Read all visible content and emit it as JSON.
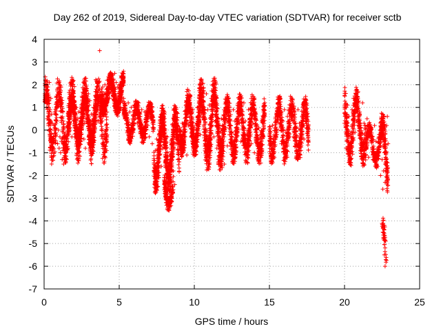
{
  "chart_data": {
    "type": "scatter",
    "title": "Day 262 of 2019, Sidereal Day-to-day VTEC variation (SDTVAR) for receiver sctb",
    "xlabel": "GPS time / hours",
    "ylabel": "SDTVAR / TECUs",
    "xlim": [
      0,
      25
    ],
    "ylim": [
      -7,
      4
    ],
    "x_ticks": [
      "0",
      "5",
      "10",
      "15",
      "20",
      "25"
    ],
    "y_ticks": [
      "4",
      "3",
      "2",
      "1",
      "0",
      "-1",
      "-2",
      "-3",
      "-4",
      "-5",
      "-6",
      "-7"
    ],
    "grid": true,
    "marker": "+",
    "color": "#ff0000",
    "series": [
      {
        "name": "sctb",
        "x": [
          0.05,
          0.1,
          0.15,
          0.2,
          0.25,
          0.3,
          0.35,
          0.4,
          0.45,
          0.5,
          0.55,
          0.6,
          0.65,
          0.7,
          0.75,
          0.8,
          0.85,
          0.9,
          0.95,
          1.0,
          1.05,
          1.1,
          1.15,
          1.2,
          1.25,
          1.3,
          1.35,
          1.4,
          1.45,
          1.5,
          1.55,
          1.6,
          1.65,
          1.7,
          1.75,
          1.8,
          1.85,
          1.9,
          1.95,
          2.0,
          2.05,
          2.1,
          2.15,
          2.2,
          2.25,
          2.3,
          2.35,
          2.4,
          2.45,
          2.5,
          2.55,
          2.6,
          2.65,
          2.7,
          2.75,
          2.8,
          2.85,
          2.9,
          2.95,
          3.0,
          3.05,
          3.1,
          3.15,
          3.2,
          3.25,
          3.3,
          3.35,
          3.4,
          3.45,
          3.5,
          3.55,
          3.6,
          3.65,
          3.7,
          3.75,
          3.8,
          3.85,
          3.9,
          3.95,
          4.0,
          4.05,
          4.1,
          4.15,
          4.2,
          4.25,
          4.3,
          4.35,
          4.4,
          4.45,
          4.5,
          4.55,
          4.6,
          4.65,
          4.7,
          4.75,
          4.8,
          4.85,
          4.9,
          4.95,
          5.0,
          5.05,
          5.1,
          5.15,
          5.2,
          5.25,
          5.3,
          5.35,
          5.4,
          5.5,
          5.6,
          5.7,
          5.8,
          5.9,
          6.0,
          6.1,
          6.2,
          6.3,
          6.4,
          6.5,
          6.6,
          6.7,
          6.8,
          6.9,
          7.0,
          7.1,
          7.2,
          7.3,
          7.4,
          7.5,
          7.6,
          7.7,
          7.8,
          7.9,
          8.0,
          8.1,
          8.2,
          8.3,
          8.4,
          8.5,
          8.6,
          8.7,
          8.8,
          8.9,
          9.0,
          9.1,
          9.2,
          9.3,
          9.4,
          9.5,
          9.6,
          9.7,
          9.8,
          9.9,
          10.0,
          10.1,
          10.2,
          10.3,
          10.4,
          10.5,
          10.6,
          10.7,
          10.8,
          10.9,
          11.0,
          11.1,
          11.2,
          11.3,
          11.4,
          11.5,
          11.6,
          11.7,
          11.8,
          11.9,
          12.0,
          12.1,
          12.2,
          12.3,
          12.4,
          12.5,
          12.6,
          12.7,
          12.8,
          12.9,
          13.0,
          13.1,
          13.2,
          13.3,
          13.4,
          13.5,
          13.6,
          13.7,
          13.8,
          13.9,
          14.0,
          14.1,
          14.2,
          14.3,
          14.4,
          14.5,
          14.6,
          14.7,
          15.0,
          15.1,
          15.2,
          15.3,
          15.4,
          15.5,
          15.6,
          15.7,
          15.8,
          15.9,
          16.0,
          16.1,
          16.2,
          16.3,
          16.4,
          16.5,
          16.6,
          16.7,
          16.8,
          16.9,
          17.0,
          17.1,
          17.2,
          17.3,
          17.4,
          17.5,
          17.6,
          20.0,
          20.1,
          20.2,
          20.3,
          20.4,
          20.5,
          20.6,
          20.7,
          20.8,
          20.9,
          21.0,
          21.1,
          21.2,
          21.3,
          21.4,
          21.5,
          21.6,
          21.7,
          21.8,
          21.9,
          22.0,
          22.1,
          22.2,
          22.3,
          22.4,
          22.5,
          22.55,
          22.6,
          22.65,
          22.7,
          22.75,
          22.8,
          22.85,
          22.9,
          3.7,
          8.2,
          8.3,
          9.5,
          22.6,
          22.65,
          22.7
        ],
        "y": [
          1.6,
          2.2,
          1.0,
          0.5,
          1.9,
          1.3,
          2.1,
          0.9,
          1.4,
          0.7,
          0.3,
          -0.5,
          0.2,
          0.8,
          0.1,
          -0.2,
          0.4,
          -0.6,
          0.0,
          -0.8,
          -0.3,
          -1.0,
          -0.5,
          -1.3,
          -0.9,
          -1.5,
          -1.2,
          -0.7,
          -1.4,
          -0.4,
          -0.1,
          0.3,
          -0.2,
          0.5,
          0.1,
          0.6,
          -0.3,
          0.9,
          0.4,
          1.2,
          0.7,
          0.2,
          1.0,
          -0.1,
          0.5,
          0.8,
          0.1,
          -0.6,
          -0.2,
          0.4,
          1.1,
          0.6,
          -0.4,
          0.3,
          -0.8,
          0.9,
          1.4,
          0.5,
          1.6,
          1.1,
          1.3,
          0.2,
          0.7,
          -0.3,
          0.4,
          1.0,
          0.6,
          1.2,
          0.8,
          1.5,
          1.0,
          0.4,
          1.3,
          1.8,
          1.1,
          0.5,
          1.7,
          1.9,
          1.3,
          1.6,
          2.0,
          1.2,
          1.8,
          2.2,
          1.5,
          2.0,
          1.4,
          2.3,
          1.7,
          2.4,
          1.9,
          2.2,
          1.6,
          2.5,
          1.8,
          2.1,
          1.4,
          1.9,
          1.2,
          2.0,
          1.5,
          1.0,
          1.7,
          1.3,
          0.9,
          1.4,
          0.6,
          1.1,
          0.7,
          1.2,
          0.8,
          1.0,
          0.5,
          1.1,
          0.9,
          0.3,
          1.2,
          0.6,
          0.9,
          0.1,
          0.8,
          0.4,
          0.2,
          -0.3,
          0.5,
          -0.6,
          0.1,
          -0.9,
          -0.4,
          -1.2,
          0.2,
          -1.6,
          -0.8,
          -2.2,
          -1.4,
          -0.3,
          -2.0,
          -2.6,
          -1.0,
          -1.8,
          -2.4,
          -0.6,
          -1.3,
          -0.2,
          -0.9,
          0.3,
          -0.5,
          0.7,
          -1.1,
          0.2,
          0.6,
          -0.3,
          0.9,
          0.1,
          -0.4,
          1.0,
          0.4,
          -0.2,
          0.8,
          1.3,
          0.5,
          1.6,
          0.9,
          1.1,
          0.3,
          0.7,
          -0.3,
          0.4,
          -0.8,
          0.2,
          -1.2,
          0.5,
          -0.4,
          -1.5,
          0.1,
          -0.7,
          0.6,
          0.2,
          -0.3,
          0.9,
          0.4,
          -0.1,
          0.8,
          0.3,
          -0.5,
          0.7,
          1.2,
          0.4,
          -0.2,
          0.9,
          0.5,
          -0.6,
          0.3,
          -1.0,
          0.2,
          -0.4,
          0.1,
          -0.8,
          0.4,
          -0.3,
          0.6,
          0.0,
          -1.2,
          0.2,
          -0.5,
          0.5,
          -0.2,
          0.8,
          0.3,
          -0.6,
          0.4,
          0.9,
          -0.1,
          0.6,
          0.2,
          1.1,
          0.5,
          -0.3,
          0.7,
          0.1,
          0.9,
          0.3,
          -0.9,
          0.2,
          -0.4,
          0.5,
          0.8,
          -0.5,
          0.3,
          -0.8,
          1.1,
          0.6,
          -0.2,
          0.9,
          1.4,
          -0.1,
          0.4,
          1.7,
          0.8,
          -0.4,
          1.2,
          0.3,
          -0.8,
          0.5,
          -1.2,
          -0.3,
          0.1,
          -1.0,
          0.2,
          -0.5,
          -1.6,
          -0.2,
          -2.0,
          -1.3,
          -2.6,
          -1.8,
          -1.0,
          -2.3,
          -1.5,
          0.2,
          0.6,
          -0.6,
          3.5,
          -3.5,
          -3.2,
          1.7,
          -4.2,
          -5.5,
          -6.0
        ],
        "clusters": [
          {
            "x": [
              0.05,
              4.2
            ],
            "y": [
              -1.5,
              2.4
            ],
            "n": 900
          },
          {
            "x": [
              1.6,
              3.5
            ],
            "y": [
              -0.8,
              1.7
            ],
            "n": 500
          },
          {
            "x": [
              3.8,
              5.3
            ],
            "y": [
              0.6,
              2.6
            ],
            "n": 600
          },
          {
            "x": [
              5.3,
              7.3
            ],
            "y": [
              -0.6,
              1.3
            ],
            "n": 500
          },
          {
            "x": [
              7.3,
              9.0
            ],
            "y": [
              -2.8,
              1.1
            ],
            "n": 700
          },
          {
            "x": [
              8.0,
              8.6
            ],
            "y": [
              -3.6,
              -1.8
            ],
            "n": 150
          },
          {
            "x": [
              9.0,
              10.3
            ],
            "y": [
              -1.2,
              1.8
            ],
            "n": 450
          },
          {
            "x": [
              10.3,
              12.0
            ],
            "y": [
              -1.8,
              2.3
            ],
            "n": 650
          },
          {
            "x": [
              12.0,
              14.7
            ],
            "y": [
              -1.5,
              1.6
            ],
            "n": 750
          },
          {
            "x": [
              15.0,
              17.6
            ],
            "y": [
              -1.5,
              1.5
            ],
            "n": 650
          },
          {
            "x": [
              20.0,
              21.4
            ],
            "y": [
              -1.6,
              1.9
            ],
            "n": 400
          },
          {
            "x": [
              21.4,
              22.5
            ],
            "y": [
              -1.7,
              0.4
            ],
            "n": 250
          },
          {
            "x": [
              22.4,
              22.9
            ],
            "y": [
              -2.8,
              0.8
            ],
            "n": 150
          },
          {
            "x": [
              22.5,
              22.8
            ],
            "y": [
              -6.4,
              -3.8
            ],
            "n": 40
          }
        ]
      }
    ]
  }
}
